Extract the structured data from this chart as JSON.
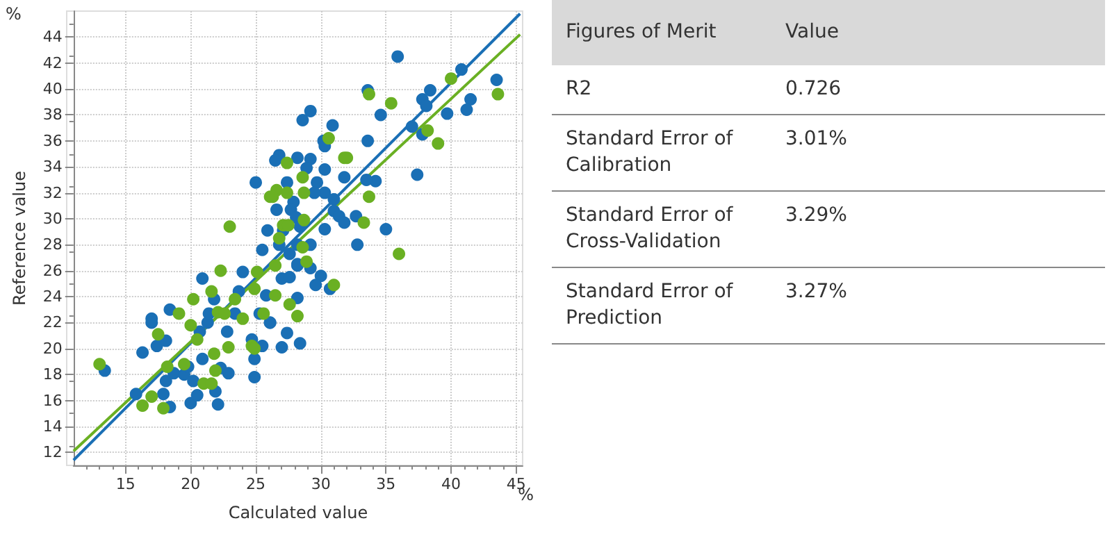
{
  "chart_data": [
    {
      "type": "scatter",
      "xlabel": "Calculated value",
      "ylabel": "Reference value",
      "annotations": [
        "%",
        "%"
      ],
      "xlim": [
        11,
        45.5
      ],
      "ylim": [
        11,
        46
      ],
      "xticks": [
        15,
        20,
        25,
        30,
        35,
        40,
        45
      ],
      "yticks": [
        12,
        14,
        16,
        18,
        20,
        22,
        24,
        26,
        28,
        30,
        32,
        34,
        36,
        38,
        40,
        42,
        44
      ],
      "grid": true,
      "marker": "circle",
      "series": [
        {
          "color": "#1a6fb5",
          "x": [
            13.4,
            15.8,
            16.3,
            17,
            17,
            17.4,
            17.9,
            18.1,
            18.4,
            18.4,
            18.1,
            18.7,
            19.5,
            19.8,
            20.2,
            20,
            20.5,
            20.9,
            20.7,
            21.3,
            21.4,
            20.9,
            21.8,
            21.9,
            22.1,
            22.3,
            22.9,
            22.8,
            23.4,
            23.7,
            24,
            24.7,
            24.9,
            24.9,
            25.3,
            26.1,
            25.8,
            35.9,
            33.6,
            38.4,
            37.8,
            38.1,
            40.8,
            41.5,
            41.2,
            39.7,
            43.5,
            37,
            37.8,
            34.6,
            33.6,
            37.4,
            35,
            32.8,
            34.2,
            33.5,
            32.7,
            31.8,
            30.9,
            30.2,
            30.3,
            29.2,
            28.6,
            29.2,
            28.2,
            26.8,
            26.5,
            28.9,
            30.3,
            25,
            27.4,
            29.7,
            30.3,
            29.5,
            31,
            27.9,
            27.7,
            31,
            31.4,
            26.6,
            28.1,
            31.8,
            28.4,
            30.3,
            25.9,
            27.1,
            26.8,
            28.2,
            29.2,
            25.5,
            27.6,
            28.2,
            29.2,
            30,
            28.2,
            29.6,
            30.7,
            27,
            27.6,
            28.2,
            27.4,
            27,
            28.4,
            25.5,
            26.1
          ],
          "values": [
            18.3,
            16.5,
            19.7,
            22.3,
            22,
            20.2,
            16.5,
            17.5,
            15.5,
            23,
            20.6,
            18.1,
            18,
            18.6,
            17.5,
            15.8,
            16.4,
            19.2,
            21.3,
            22,
            22.7,
            25.4,
            23.8,
            16.7,
            15.7,
            18.5,
            18.1,
            21.3,
            22.7,
            24.4,
            25.9,
            20.7,
            17.8,
            19.2,
            22.7,
            22,
            24.1,
            42.5,
            39.9,
            39.9,
            39.2,
            38.7,
            41.5,
            39.2,
            38.4,
            38.1,
            40.7,
            37.1,
            36.5,
            38,
            36,
            33.4,
            29.2,
            28,
            32.9,
            33,
            30.2,
            33.2,
            37.2,
            36,
            35.6,
            38.3,
            37.6,
            34.6,
            34.7,
            34.9,
            34.5,
            33.9,
            33.8,
            32.8,
            32.8,
            32.8,
            32,
            32,
            31.5,
            31.3,
            30.7,
            30.6,
            30.2,
            30.7,
            30.1,
            29.7,
            29.4,
            29.2,
            29.1,
            29.1,
            28,
            28,
            28,
            27.6,
            27.3,
            26.4,
            26.2,
            25.6,
            26.5,
            24.9,
            24.6,
            25.4,
            25.5,
            23.9,
            21.2,
            20.1,
            20.4,
            20.2,
            22
          ]
        },
        {
          "color": "#6ab023",
          "x": [
            13,
            16.3,
            17,
            17.9,
            17.5,
            18.2,
            19.1,
            19.5,
            20,
            20.2,
            20.5,
            21,
            21.6,
            21.8,
            21.9,
            21.6,
            22.3,
            22.1,
            22.6,
            22.9,
            23.4,
            24,
            24.7,
            25.1,
            24.9,
            23,
            26.1,
            26.6,
            40,
            43.6,
            33.7,
            35.4,
            38.2,
            39,
            30.6,
            31.8,
            32,
            27.4,
            28.6,
            26.3,
            28.7,
            27.4,
            33.7,
            28.7,
            33.3,
            27.1,
            27.5,
            26.8,
            28.6,
            36,
            28.9,
            26.5,
            31,
            26.5,
            27.6,
            28.2,
            25.6,
            24.9
          ],
          "values": [
            18.8,
            15.6,
            16.3,
            15.4,
            21.1,
            18.6,
            22.7,
            18.8,
            21.8,
            23.8,
            20.7,
            17.3,
            17.3,
            19.6,
            18.3,
            24.4,
            26,
            22.8,
            22.7,
            20.1,
            23.8,
            22.3,
            20.2,
            25.9,
            24.6,
            29.4,
            31.7,
            32.2,
            40.8,
            39.6,
            39.6,
            38.9,
            36.8,
            35.8,
            36.2,
            34.7,
            34.7,
            34.3,
            33.2,
            31.7,
            32,
            32,
            31.7,
            29.9,
            29.7,
            29.5,
            29.5,
            28.5,
            27.8,
            27.3,
            26.7,
            26.4,
            24.9,
            24.1,
            23.4,
            22.5,
            22.7,
            20
          ]
        },
        {
          "type": "line",
          "color": "#1a6fb5",
          "marker": "none",
          "x": [
            11,
            45.3
          ],
          "values": [
            11.4,
            45.8
          ]
        },
        {
          "type": "line",
          "color": "#6ab023",
          "marker": "none",
          "x": [
            11,
            45.3
          ],
          "values": [
            12.1,
            44.2
          ]
        }
      ]
    },
    {
      "type": "other",
      "annotations": [
        "Figures of Merit",
        "Value",
        "R2",
        "0.726",
        "Standard Error of Calibration",
        "3.01%",
        "Standard Error of Cross-Validation",
        "3.29%",
        "Standard Error of Prediction",
        "3.27%"
      ]
    }
  ]
}
